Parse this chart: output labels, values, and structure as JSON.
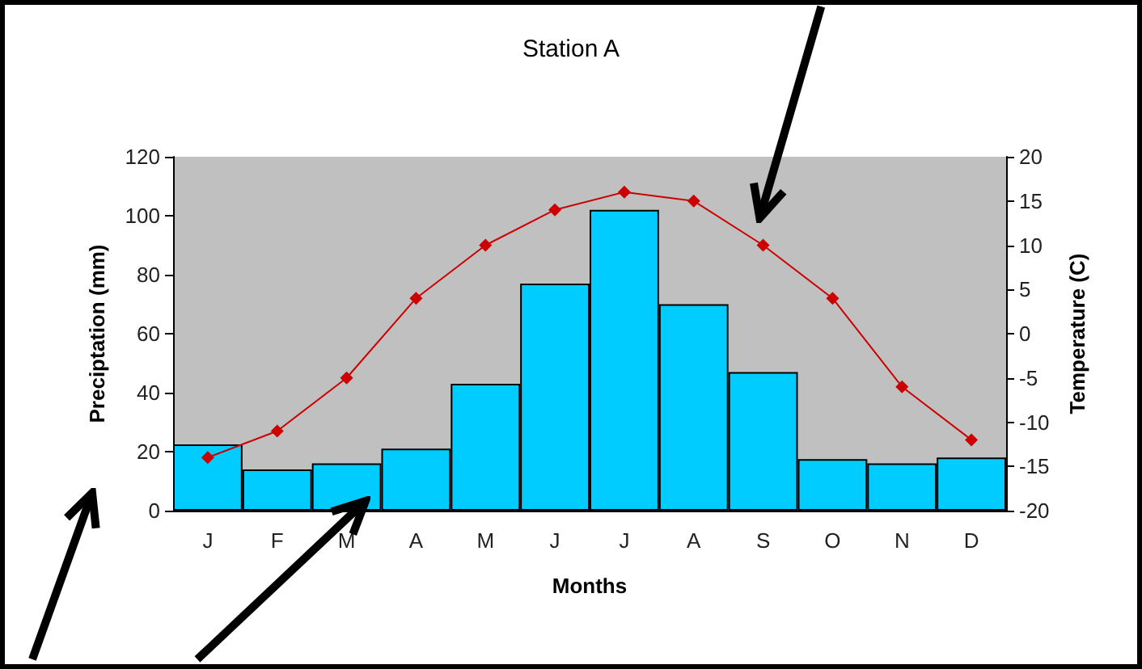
{
  "chart_data": {
    "type": "bar",
    "title": "Station A",
    "xlabel": "Months",
    "ylabel": "Preciptation (mm)",
    "y2label": "Temperature (C)",
    "categories": [
      "J",
      "F",
      "M",
      "A",
      "M",
      "J",
      "J",
      "A",
      "S",
      "O",
      "N",
      "D"
    ],
    "series": [
      {
        "color": "#00ccff",
        "values": [
          22.5,
          14,
          16,
          21,
          43,
          77,
          102,
          70,
          47,
          17.5,
          16,
          18
        ]
      },
      {
        "type": "line",
        "axis": "y2",
        "color": "#cc0000",
        "marker": "diamond",
        "line_style": "solid",
        "values": [
          -14,
          -11,
          -5,
          4,
          10,
          14,
          16,
          15,
          10,
          4,
          -6,
          -12
        ]
      }
    ],
    "ylim": [
      0,
      120
    ],
    "yticks": [
      0,
      20,
      40,
      60,
      80,
      100,
      120
    ],
    "y2lim": [
      -20,
      20
    ],
    "y2ticks": [
      -20,
      -15,
      -10,
      -5,
      0,
      5,
      10,
      15,
      20
    ],
    "grid": false
  }
}
